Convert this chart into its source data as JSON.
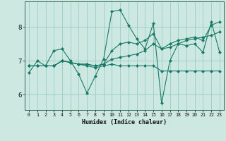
{
  "xlabel": "Humidex (Indice chaleur)",
  "background_color": "#cce8e0",
  "grid_color": "#99ccbf",
  "line_color": "#1a7a6a",
  "xlim": [
    -0.5,
    23.5
  ],
  "ylim": [
    5.55,
    8.75
  ],
  "yticks": [
    6,
    7,
    8
  ],
  "xticks": [
    0,
    1,
    2,
    3,
    4,
    5,
    6,
    7,
    8,
    9,
    10,
    11,
    12,
    13,
    14,
    15,
    16,
    17,
    18,
    19,
    20,
    21,
    22,
    23
  ],
  "series": [
    [
      6.65,
      7.0,
      6.85,
      7.3,
      7.35,
      7.0,
      6.6,
      6.05,
      6.55,
      7.05,
      8.45,
      8.5,
      8.05,
      7.65,
      7.35,
      8.1,
      5.75,
      7.0,
      7.5,
      7.45,
      7.5,
      7.25,
      8.15,
      7.25
    ],
    [
      6.85,
      6.85,
      6.85,
      6.85,
      7.0,
      6.95,
      6.9,
      6.85,
      6.8,
      6.85,
      6.9,
      6.85,
      6.85,
      6.85,
      6.85,
      6.85,
      6.7,
      6.7,
      6.7,
      6.7,
      6.7,
      6.7,
      6.7,
      6.7
    ],
    [
      6.85,
      6.85,
      6.85,
      6.85,
      7.0,
      6.95,
      6.9,
      6.9,
      6.85,
      6.9,
      7.05,
      7.1,
      7.15,
      7.2,
      7.3,
      7.5,
      7.35,
      7.4,
      7.5,
      7.6,
      7.65,
      7.7,
      7.75,
      7.85
    ],
    [
      6.85,
      6.85,
      6.85,
      6.85,
      7.0,
      6.95,
      6.9,
      6.9,
      6.85,
      6.9,
      7.3,
      7.5,
      7.55,
      7.5,
      7.6,
      7.8,
      7.35,
      7.5,
      7.6,
      7.65,
      7.7,
      7.6,
      8.05,
      8.15
    ]
  ],
  "xlabel_fontsize": 6.0,
  "xtick_fontsize": 4.8,
  "ytick_fontsize": 6.5
}
